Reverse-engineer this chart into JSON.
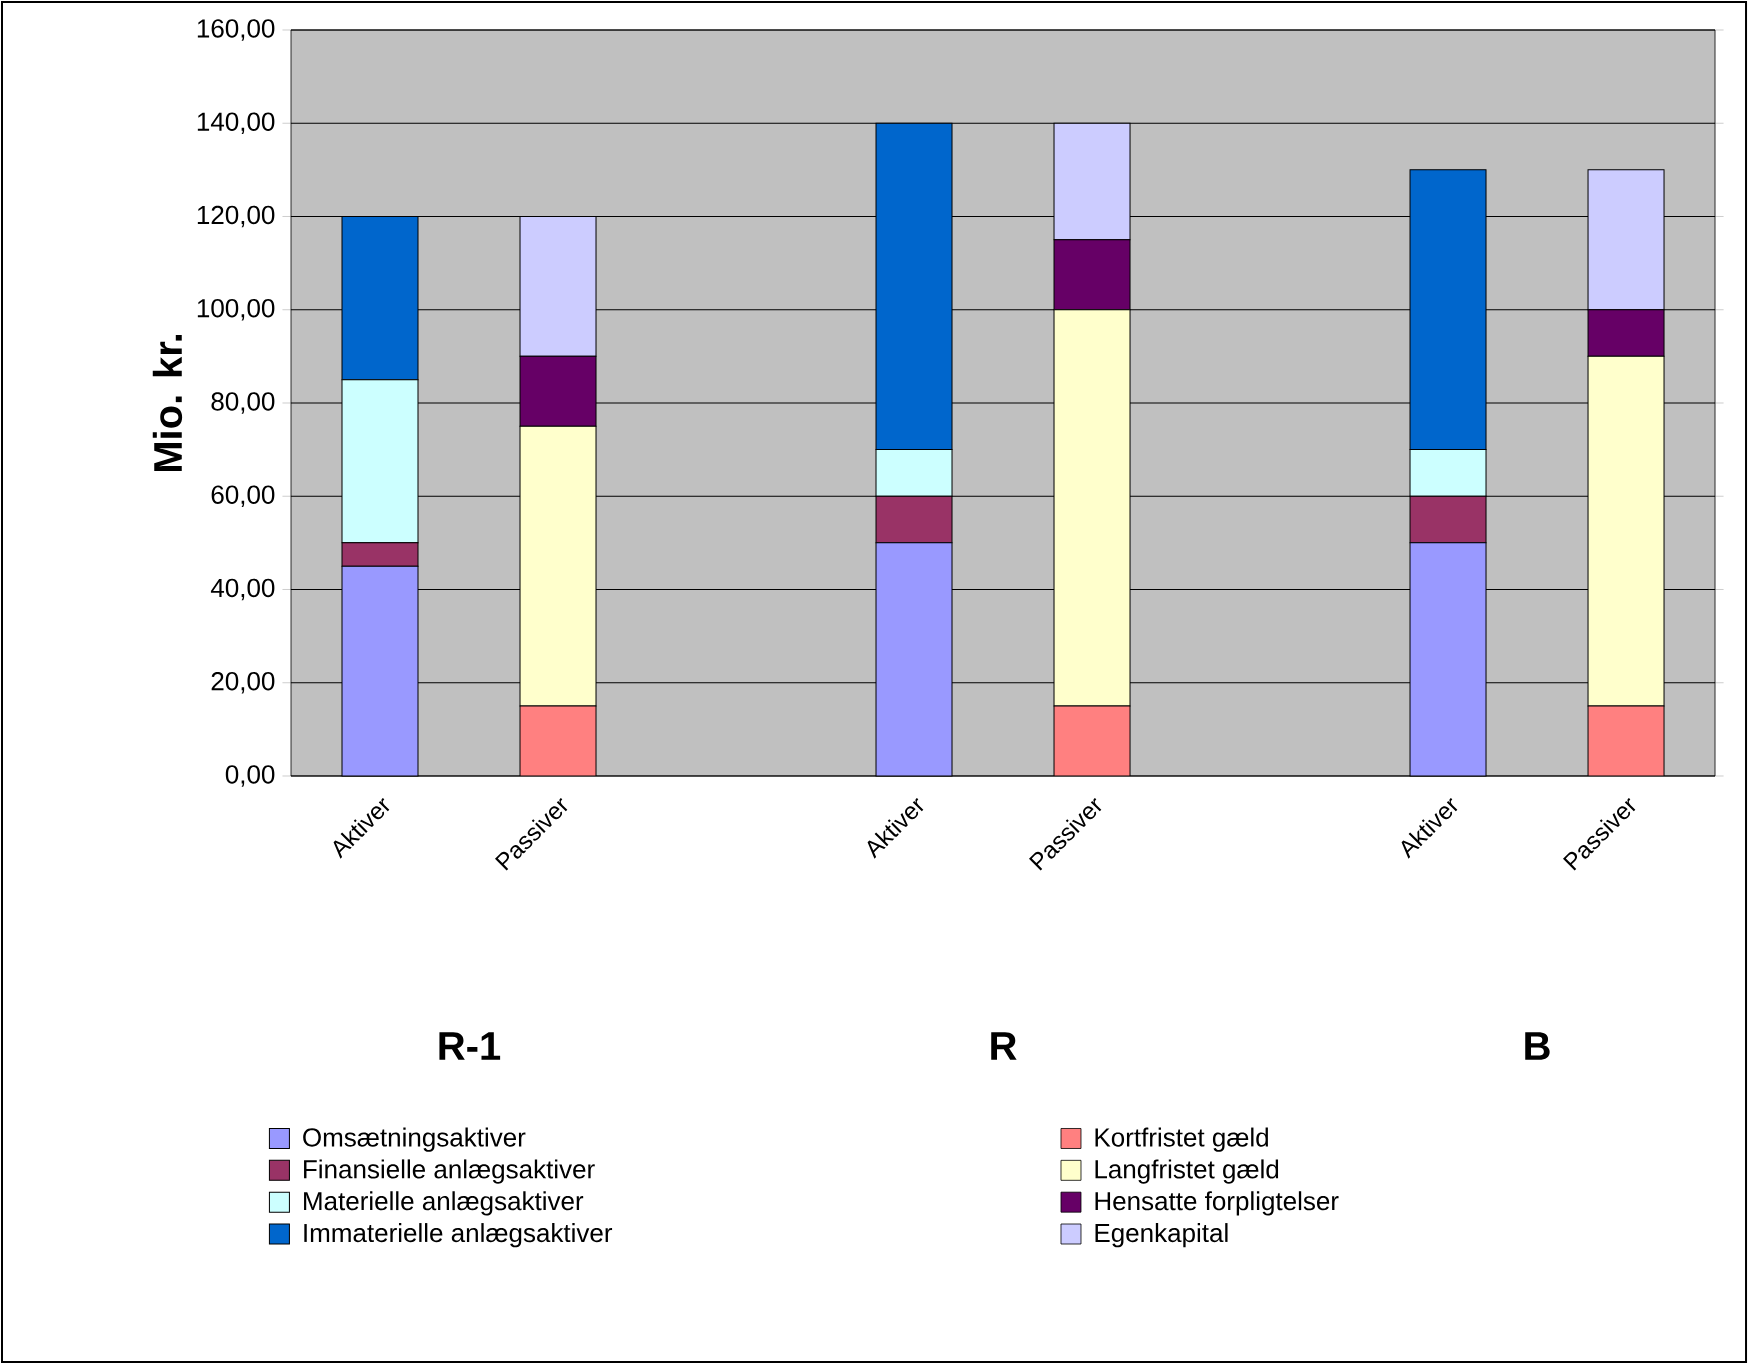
{
  "chart_data": {
    "type": "bar",
    "stacked": true,
    "ylabel": "Mio. kr.",
    "categories": [
      "Aktiver",
      "Passiver",
      null,
      "Aktiver",
      "Passiver",
      null,
      "Aktiver",
      "Passiver"
    ],
    "series": [
      {
        "name": "Omsætningsaktiver",
        "color": "#9999ff",
        "values": [
          45,
          null,
          null,
          50,
          null,
          null,
          50,
          null
        ]
      },
      {
        "name": "Finansielle anlægsaktiver",
        "color": "#993366",
        "values": [
          5,
          null,
          null,
          10,
          null,
          null,
          10,
          null
        ]
      },
      {
        "name": "Materielle anlægsaktiver",
        "color": "#ccffff",
        "values": [
          35,
          null,
          null,
          10,
          null,
          null,
          10,
          null
        ]
      },
      {
        "name": "Immaterielle anlægsaktiver",
        "color": "#0066cc",
        "values": [
          35,
          null,
          null,
          70,
          null,
          null,
          60,
          null
        ]
      },
      {
        "name": "Kortfristet gæld",
        "color": "#ff8080",
        "values": [
          null,
          15,
          null,
          null,
          15,
          null,
          null,
          15
        ]
      },
      {
        "name": "Langfristet gæld",
        "color": "#ffffcc",
        "values": [
          null,
          60,
          null,
          null,
          85,
          null,
          null,
          75
        ]
      },
      {
        "name": "Hensatte forpligtelser",
        "color": "#660066",
        "values": [
          null,
          15,
          null,
          null,
          15,
          null,
          null,
          10
        ]
      },
      {
        "name": "Egenkapital",
        "color": "#ccccff",
        "values": [
          null,
          30,
          null,
          null,
          25,
          null,
          null,
          30
        ]
      }
    ],
    "ylim": [
      0,
      160
    ],
    "yticks": [
      {
        "value": 0,
        "label": "0,00"
      },
      {
        "value": 20,
        "label": "20,00"
      },
      {
        "value": 40,
        "label": "40,00"
      },
      {
        "value": 60,
        "label": "60,00"
      },
      {
        "value": 80,
        "label": "80,00"
      },
      {
        "value": 100,
        "label": "100,00"
      },
      {
        "value": 120,
        "label": "120,00"
      },
      {
        "value": 140,
        "label": "140,00"
      },
      {
        "value": 160,
        "label": "160,00"
      }
    ],
    "grid": "y",
    "legend": "bottom",
    "annotations": [
      "R-1",
      "R",
      "B"
    ]
  }
}
